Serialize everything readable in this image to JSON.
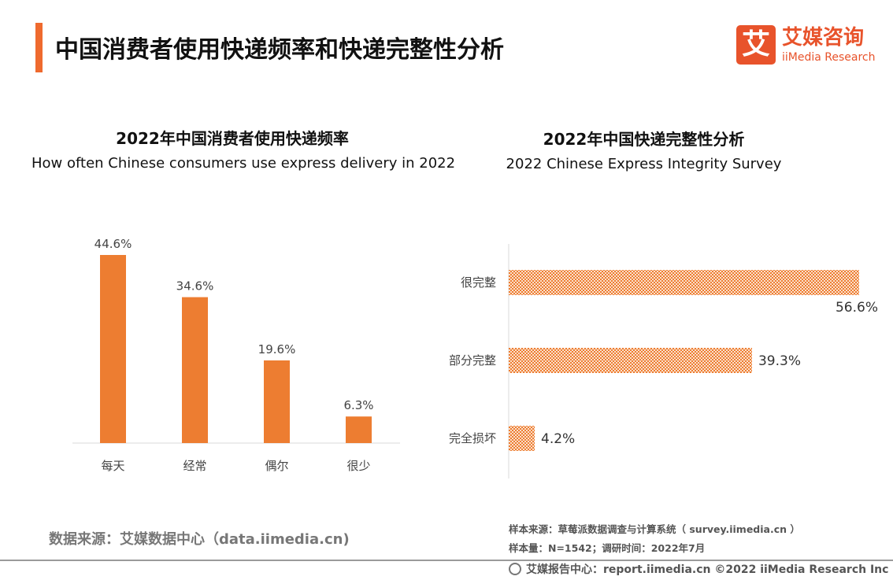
{
  "header": {
    "title": "中国消费者使用快递频率和快递完整性分析",
    "logo_cn": "艾媒咨询",
    "logo_en": "iiMedia Research",
    "logo_mark": "艾",
    "accent_color": "#ef6a2e"
  },
  "chart_data": [
    {
      "type": "bar",
      "title": "2022年中国消费者使用快递频率",
      "subtitle": "How often Chinese consumers use express delivery in 2022",
      "categories": [
        "每天",
        "经常",
        "偶尔",
        "很少"
      ],
      "values": [
        44.6,
        34.6,
        19.6,
        6.3
      ],
      "value_labels": [
        "44.6%",
        "34.6%",
        "19.6%",
        "6.3%"
      ],
      "unit": "%",
      "ylim": [
        0,
        44.6
      ],
      "grid": false,
      "color": "#ed7d31"
    },
    {
      "type": "bar",
      "orientation": "horizontal",
      "title": "2022年中国快递完整性分析",
      "subtitle": "2022 Chinese Express Integrity Survey",
      "categories": [
        "很完整",
        "部分完整",
        "完全损坏"
      ],
      "values": [
        56.6,
        39.3,
        4.2
      ],
      "value_labels": [
        "56.6%",
        "39.3%",
        "4.2%"
      ],
      "unit": "%",
      "xlim": [
        0,
        56.6
      ],
      "grid": false,
      "color": "#ed7d31",
      "pattern": "checker"
    }
  ],
  "source_left": "数据来源：艾媒数据中心（data.iimedia.cn)",
  "notes": {
    "sample_source": "样本来源：草莓派数据调查与计算系统（ survey.iimedia.cn ）",
    "sample_size": "样本量：N=1542；调研时间：2022年7月"
  },
  "footer": {
    "text": "艾媒报告中心：report.iimedia.cn  ©2022  iiMedia Research  Inc",
    "icon": "globe-icon"
  }
}
